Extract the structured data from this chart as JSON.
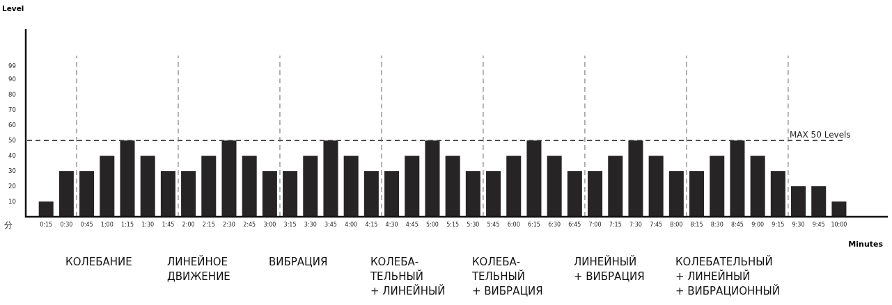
{
  "chart_data": {
    "type": "bar",
    "ylabel": "Level",
    "xlabel": "Minutes",
    "x": [
      15,
      30,
      45,
      60,
      75,
      90,
      105,
      120,
      135,
      150,
      165,
      180,
      195,
      210,
      225,
      240,
      255,
      270,
      285,
      300,
      315,
      330,
      345,
      360,
      375,
      390,
      405,
      420,
      435,
      450,
      465,
      480,
      495,
      510,
      525,
      540,
      555,
      570,
      585,
      600
    ],
    "values": [
      10,
      30,
      30,
      40,
      50,
      40,
      30,
      30,
      40,
      50,
      40,
      30,
      30,
      40,
      50,
      40,
      30,
      30,
      40,
      50,
      40,
      30,
      30,
      40,
      50,
      40,
      30,
      30,
      40,
      50,
      40,
      30,
      30,
      40,
      50,
      40,
      30,
      20,
      20,
      10
    ],
    "color": "#262425",
    "xlim": [
      0,
      636
    ],
    "ylim": [
      0,
      123
    ],
    "xticks": [
      {
        "value": 15,
        "label": "0:15"
      },
      {
        "value": 30,
        "label": "0:30"
      },
      {
        "value": 45,
        "label": "0:45"
      },
      {
        "value": 60,
        "label": "1:00"
      },
      {
        "value": 75,
        "label": "1:15"
      },
      {
        "value": 90,
        "label": "1:30"
      },
      {
        "value": 105,
        "label": "1:45"
      },
      {
        "value": 120,
        "label": "2:00"
      },
      {
        "value": 135,
        "label": "2:15"
      },
      {
        "value": 150,
        "label": "2:30"
      },
      {
        "value": 165,
        "label": "2:45"
      },
      {
        "value": 180,
        "label": "3:00"
      },
      {
        "value": 195,
        "label": "3:15"
      },
      {
        "value": 210,
        "label": "3:30"
      },
      {
        "value": 225,
        "label": "3:45"
      },
      {
        "value": 240,
        "label": "4:00"
      },
      {
        "value": 255,
        "label": "4:15"
      },
      {
        "value": 270,
        "label": "4:30"
      },
      {
        "value": 285,
        "label": "4:45"
      },
      {
        "value": 300,
        "label": "5:00"
      },
      {
        "value": 315,
        "label": "5:15"
      },
      {
        "value": 330,
        "label": "5:30"
      },
      {
        "value": 345,
        "label": "5:45"
      },
      {
        "value": 360,
        "label": "6:00"
      },
      {
        "value": 375,
        "label": "6:15"
      },
      {
        "value": 390,
        "label": "6:30"
      },
      {
        "value": 405,
        "label": "6:45"
      },
      {
        "value": 420,
        "label": "7:00"
      },
      {
        "value": 435,
        "label": "7:15"
      },
      {
        "value": 450,
        "label": "7:30"
      },
      {
        "value": 465,
        "label": "7:45"
      },
      {
        "value": 480,
        "label": "8:00"
      },
      {
        "value": 495,
        "label": "8:15"
      },
      {
        "value": 510,
        "label": "8:30"
      },
      {
        "value": 525,
        "label": "8:45"
      },
      {
        "value": 540,
        "label": "9:00"
      },
      {
        "value": 555,
        "label": "9:15"
      },
      {
        "value": 570,
        "label": "9:30"
      },
      {
        "value": 585,
        "label": "9:45"
      },
      {
        "value": 600,
        "label": "10:00"
      }
    ],
    "yticks": [
      10,
      20,
      30,
      40,
      50,
      60,
      70,
      80,
      90,
      99
    ],
    "ref_lines": [
      {
        "axis": "y",
        "value": 50,
        "label": "MAX 50 Levels",
        "line_style": "dashed"
      },
      {
        "axis": "x",
        "value": 37.5,
        "line_style": "dashed"
      },
      {
        "axis": "x",
        "value": 112.5,
        "line_style": "dashed"
      },
      {
        "axis": "x",
        "value": 187.5,
        "line_style": "dashed"
      },
      {
        "axis": "x",
        "value": 262.5,
        "line_style": "dashed"
      },
      {
        "axis": "x",
        "value": 337.5,
        "line_style": "dashed"
      },
      {
        "axis": "x",
        "value": 412.5,
        "line_style": "dashed"
      },
      {
        "axis": "x",
        "value": 487.5,
        "line_style": "dashed"
      },
      {
        "axis": "x",
        "value": 562.5,
        "line_style": "dashed"
      }
    ],
    "annotations": [
      "分",
      "КОЛЕБАНИЕ",
      "ЛИНЕЙНОЕ\nДВИЖЕНИЕ",
      "ВИБРАЦИЯ",
      "КОЛЕБА-\nТЕЛЬНЫЙ\n+ ЛИНЕЙНЫЙ",
      "КОЛЕБА-\nТЕЛЬНЫЙ\n+ ВИБРАЦИЯ",
      "ЛИНЕЙНЫЙ\n+ ВИБРАЦИЯ",
      "КОЛЕБАТЕЛЬНЫЙ\n+ ЛИНЕЙНЫЙ\n+ ВИБРАЦИОННЫЙ"
    ],
    "grid": false
  }
}
